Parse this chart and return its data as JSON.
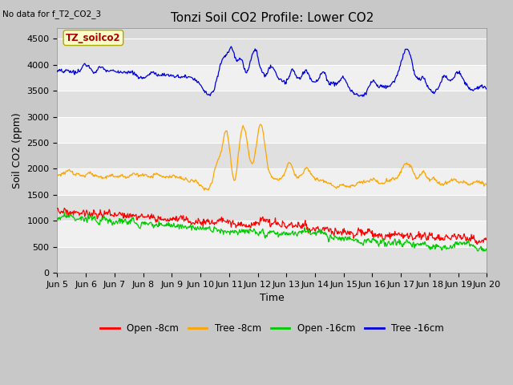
{
  "title": "Tonzi Soil CO2 Profile: Lower CO2",
  "subtitle": "No data for f_T2_CO2_3",
  "ylabel": "Soil CO2 (ppm)",
  "xlabel": "Time",
  "box_label": "TZ_soilco2",
  "ylim": [
    0,
    4700
  ],
  "yticks": [
    0,
    500,
    1000,
    1500,
    2000,
    2500,
    3000,
    3500,
    4000,
    4500
  ],
  "xtick_labels": [
    "Jun 5",
    "Jun 6",
    "Jun 7",
    "Jun 8",
    "Jun 9",
    "Jun 10",
    "Jun 11",
    "Jun 12",
    "Jun 13",
    "Jun 14",
    "Jun 15",
    "Jun 16",
    "Jun 17",
    "Jun 18",
    "Jun 19",
    "Jun 20"
  ],
  "legend_entries": [
    "Open -8cm",
    "Tree -8cm",
    "Open -16cm",
    "Tree -16cm"
  ],
  "legend_colors": [
    "#ff0000",
    "#ffa500",
    "#00cc00",
    "#0000ff"
  ],
  "title_fontsize": 11,
  "label_fontsize": 9,
  "tick_fontsize": 8
}
